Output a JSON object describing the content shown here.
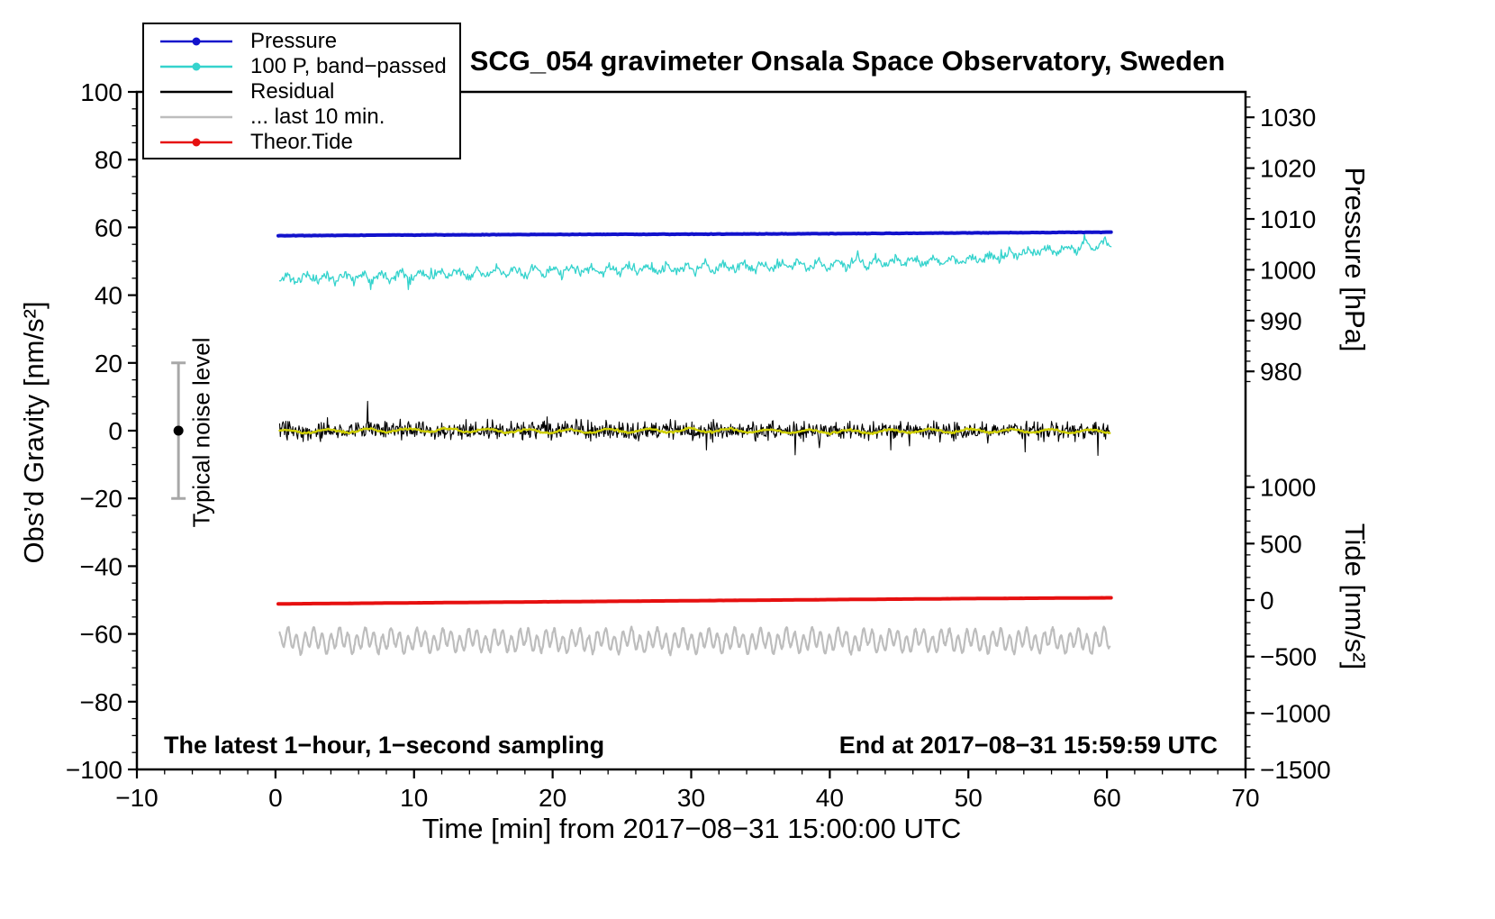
{
  "page": {
    "background": "#ffffff"
  },
  "chart_data": {
    "type": "line",
    "title": "SCG_054 gravimeter Onsala Space Observatory, Sweden",
    "xlabel": "Time [min] from 2017−08−31 15:00:00 UTC",
    "annotations": {
      "bottom_left": "The latest 1−hour, 1−second sampling",
      "bottom_right": "End at 2017−08−31 15:59:59 UTC"
    },
    "axes": {
      "x": {
        "min": -10,
        "max": 70,
        "major_ticks": [
          -10,
          0,
          10,
          20,
          30,
          40,
          50,
          60,
          70
        ],
        "minor_step": 2
      },
      "gravity": {
        "label": "Obs’d Gravity [nm/s²]",
        "min": -100,
        "max": 100,
        "major_ticks": [
          -100,
          -80,
          -60,
          -40,
          -20,
          0,
          20,
          40,
          60,
          80,
          100
        ],
        "minor_step": 5
      },
      "pressure": {
        "label": "Pressure [hPa]",
        "major_ticks": [
          1030,
          1020,
          1010,
          1000,
          990,
          980
        ],
        "minor_step": 2,
        "minor_range": [
          978,
          1034
        ],
        "ref_value": 1000,
        "ref_gravity": 47.5,
        "gravity_per_unit": 1.5
      },
      "tide": {
        "label": "Tide [nm/s²]",
        "major_ticks": [
          1000,
          500,
          0,
          -500,
          -1000,
          -1500
        ],
        "minor_step": 100,
        "minor_range": [
          -1500,
          1100
        ],
        "ref_value": 0,
        "ref_gravity": -50,
        "gravity_per_unit": 0.033333
      }
    },
    "noise_bar": {
      "x": -7,
      "center": 0,
      "half_range": 20,
      "label": "Typical noise level",
      "color": "#a8a8a8",
      "dot_color": "#000000"
    },
    "legend": [
      {
        "label": "Pressure",
        "color": "#1212cc",
        "marker": "line-dot"
      },
      {
        "label": "100 P, band−passed",
        "color": "#35d3cd",
        "marker": "line-dot"
      },
      {
        "label": "Residual",
        "color": "#000000",
        "marker": "line"
      },
      {
        "label": "... last 10 min.",
        "color": "#bdbdbd",
        "marker": "line"
      },
      {
        "label": "Theor.Tide",
        "color": "#e61010",
        "marker": "line-dot"
      }
    ],
    "series": [
      {
        "name": "100 P, band−passed",
        "axis": "gravity",
        "color": "#35d3cd",
        "width": 1.3,
        "x_start": 0.3,
        "x_end": 60.3,
        "points_per_min": 14,
        "anchors": [
          44.8,
          46.0,
          47.2,
          48.0,
          49.2,
          50.6,
          55.2
        ],
        "noise": 2.1,
        "spike_prob": 0.02,
        "spike_mult": 2.0,
        "waves": [
          {
            "amp": 1.0,
            "period": 1.37
          }
        ],
        "seed": 11
      },
      {
        "name": "Pressure",
        "axis": "pressure",
        "color": "#1212cc",
        "width": 4,
        "x_start": 0.2,
        "x_end": 60.3,
        "points_per_min": 8,
        "anchors": [
          1006.7,
          1006.85,
          1006.95,
          1007.0,
          1007.1,
          1007.25,
          1007.4
        ],
        "noise": 0.07,
        "spike_prob": 0,
        "spike_mult": 1,
        "waves": [],
        "seed": 21
      },
      {
        "name": "Residual",
        "axis": "gravity",
        "color": "#000000",
        "width": 1.1,
        "x_start": 0.3,
        "x_end": 60.2,
        "points_per_min": 20,
        "anchors": [
          0,
          0,
          0,
          0,
          0,
          0,
          0
        ],
        "noise": 4.0,
        "spike_prob": 0.025,
        "spike_mult": 2.3,
        "waves": [],
        "seed": 31
      },
      {
        "name": "Residual smoothed",
        "axis": "gravity",
        "color": "#cfcf00",
        "width": 2.4,
        "x_start": 0.3,
        "x_end": 60.2,
        "points_per_min": 10,
        "anchors": [
          -0.3,
          0.2,
          -0.2,
          0.1,
          -0.3,
          0.0,
          -0.2
        ],
        "noise": 0.45,
        "spike_prob": 0,
        "spike_mult": 1,
        "waves": [
          {
            "amp": 0.5,
            "period": 2.9
          }
        ],
        "seed": 41
      },
      {
        "name": "Theor.Tide",
        "axis": "tide",
        "color": "#e61010",
        "width": 4,
        "x_start": 0.2,
        "x_end": 60.3,
        "points_per_min": 6,
        "anchors": [
          -34,
          -24.5,
          -15,
          -5.5,
          4,
          13,
          20
        ],
        "noise": 0.5,
        "spike_prob": 0,
        "spike_mult": 1,
        "waves": [],
        "seed": 51
      },
      {
        "name": "Residual last 10 min",
        "axis": "gravity",
        "color": "#bdbdbd",
        "width": 2.2,
        "x_start": 0.3,
        "x_end": 60.2,
        "points_per_min": 26,
        "anchors": [
          -62,
          -62,
          -62,
          -62,
          -62,
          -62,
          -62
        ],
        "noise": 0.7,
        "spike_prob": 0,
        "spike_mult": 1,
        "waves": [
          {
            "amp": 2.6,
            "period": 0.62
          },
          {
            "amp": 1.3,
            "period": 1.9
          }
        ],
        "seed": 61
      }
    ]
  }
}
